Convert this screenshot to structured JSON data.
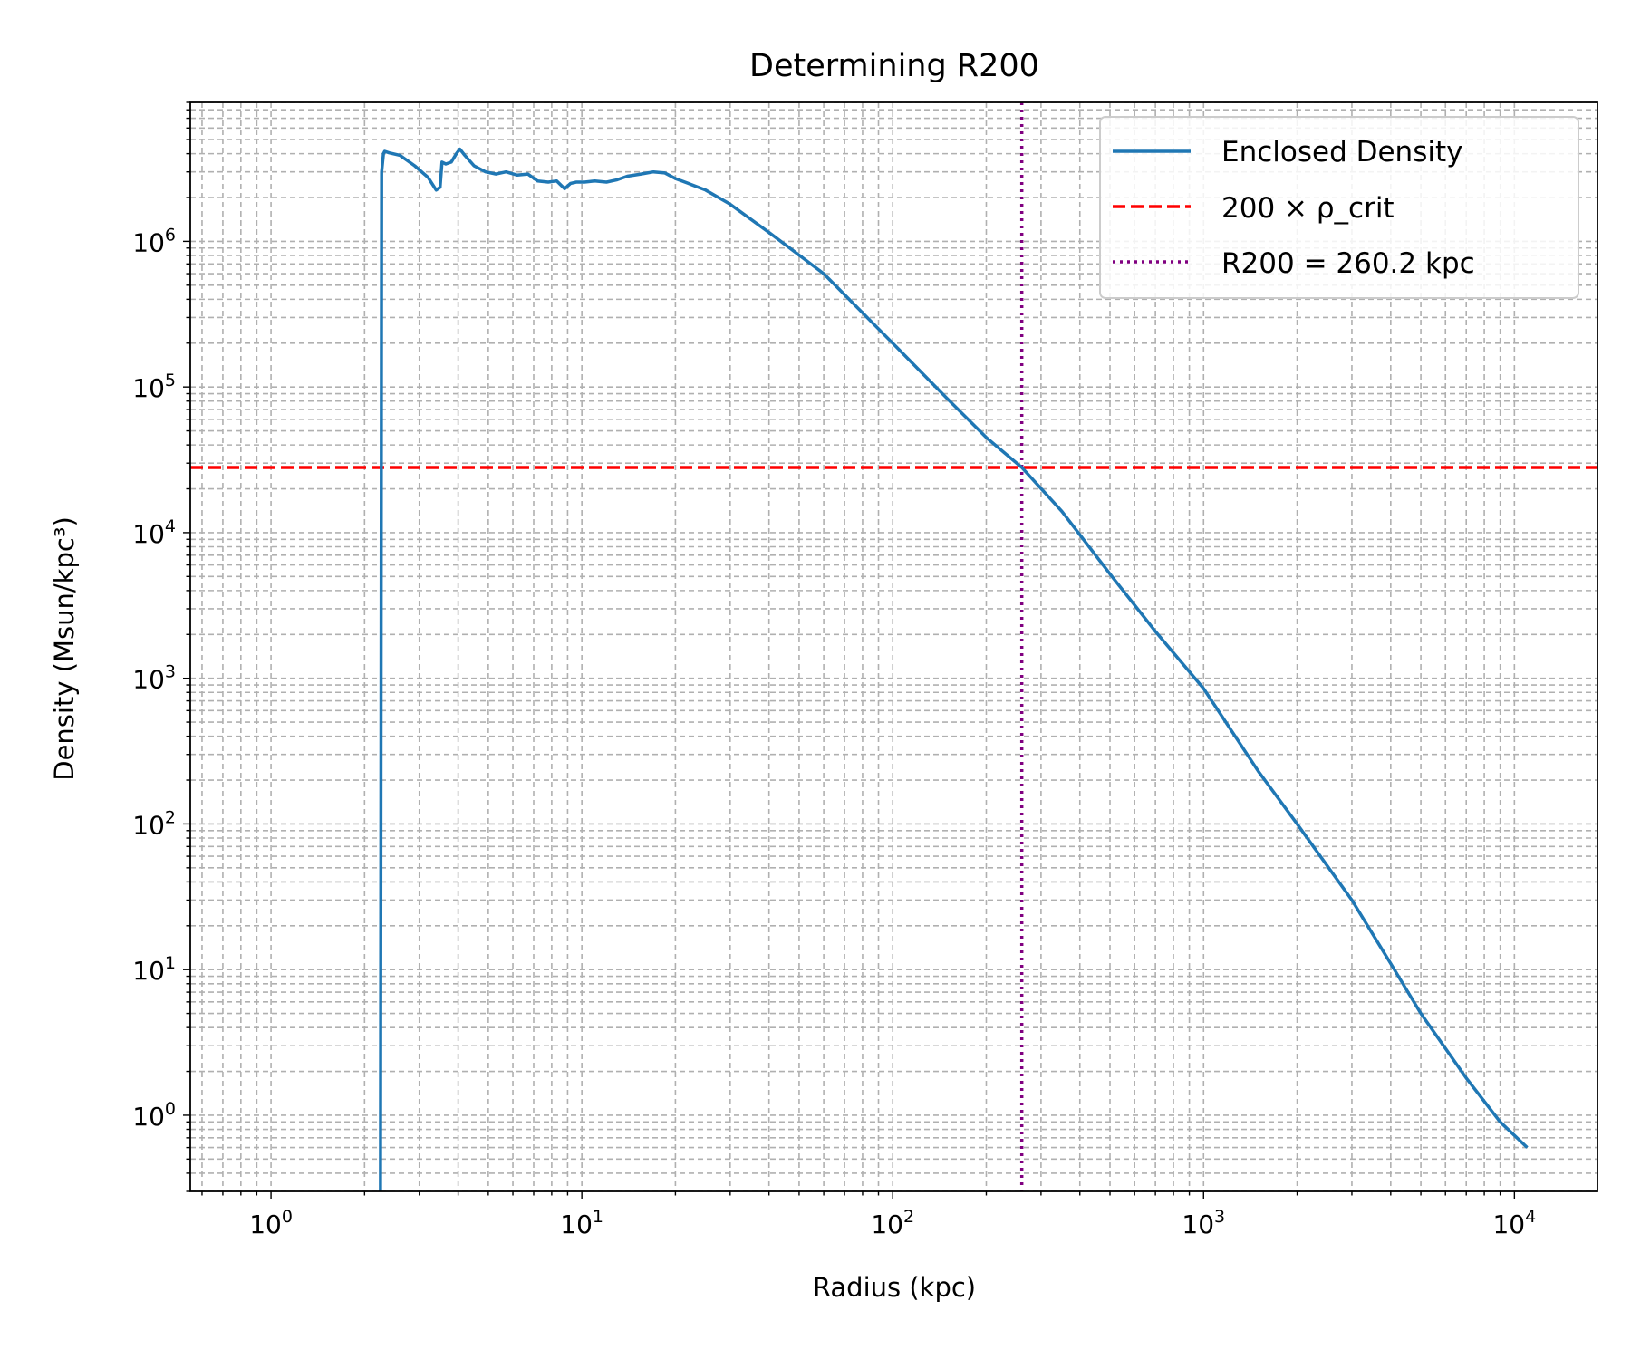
{
  "chart_data": {
    "type": "line",
    "title": "Determining R200",
    "xlabel": "Radius (kpc)",
    "ylabel": "Density (Msun/kpc³)",
    "xscale": "log",
    "yscale": "log",
    "xlim": [
      0.55,
      18500
    ],
    "ylim": [
      0.3,
      9000000
    ],
    "grid": true,
    "grid_style": "dashed, major and minor",
    "legend_position": "top-right",
    "x_ticks": [
      {
        "base": "10",
        "exp": "0",
        "value": 1
      },
      {
        "base": "10",
        "exp": "1",
        "value": 10
      },
      {
        "base": "10",
        "exp": "2",
        "value": 100
      },
      {
        "base": "10",
        "exp": "3",
        "value": 1000
      },
      {
        "base": "10",
        "exp": "4",
        "value": 10000
      }
    ],
    "y_ticks": [
      {
        "base": "10",
        "exp": "0",
        "value": 1
      },
      {
        "base": "10",
        "exp": "1",
        "value": 10
      },
      {
        "base": "10",
        "exp": "2",
        "value": 100
      },
      {
        "base": "10",
        "exp": "3",
        "value": 1000
      },
      {
        "base": "10",
        "exp": "4",
        "value": 10000
      },
      {
        "base": "10",
        "exp": "5",
        "value": 100000
      },
      {
        "base": "10",
        "exp": "6",
        "value": 1000000
      }
    ],
    "series": [
      {
        "name": "Enclosed Density",
        "color": "#1f77b4",
        "style": "solid",
        "x": [
          2.25,
          2.27,
          2.3,
          2.32,
          2.4,
          2.6,
          2.9,
          3.2,
          3.4,
          3.5,
          3.55,
          3.65,
          3.8,
          3.95,
          4.05,
          4.2,
          4.5,
          4.9,
          5.3,
          5.7,
          6.2,
          6.7,
          7.2,
          7.8,
          8.3,
          8.8,
          9.2,
          9.6,
          10.2,
          11,
          12,
          13,
          14,
          15.5,
          17,
          18.5,
          20,
          22,
          25,
          30,
          40,
          60,
          100,
          150,
          200,
          260.2,
          350,
          500,
          700,
          1000,
          1500,
          2000,
          3000,
          4000,
          5000,
          7000,
          9000,
          11000
        ],
        "y": [
          0.3,
          3000000,
          4000000,
          4150000,
          4050000,
          3900000,
          3300000,
          2750000,
          2250000,
          2350000,
          3500000,
          3400000,
          3500000,
          4000000,
          4300000,
          3900000,
          3300000,
          3000000,
          2900000,
          3000000,
          2850000,
          2900000,
          2600000,
          2550000,
          2600000,
          2300000,
          2500000,
          2550000,
          2550000,
          2600000,
          2550000,
          2650000,
          2800000,
          2900000,
          3000000,
          2950000,
          2700000,
          2500000,
          2250000,
          1800000,
          1150000,
          600000,
          200000,
          83000,
          45000,
          28000,
          14000,
          5200,
          2100,
          850,
          230,
          100,
          30,
          11,
          5,
          1.8,
          0.9,
          0.6
        ]
      },
      {
        "name": "200 × ρ_crit",
        "color": "#ff0000",
        "style": "dashed",
        "orientation": "horizontal",
        "y_value": 28000
      },
      {
        "name": "R200 = 260.2 kpc",
        "color": "#800080",
        "style": "dotted",
        "orientation": "vertical",
        "x_value": 260.2
      }
    ]
  }
}
